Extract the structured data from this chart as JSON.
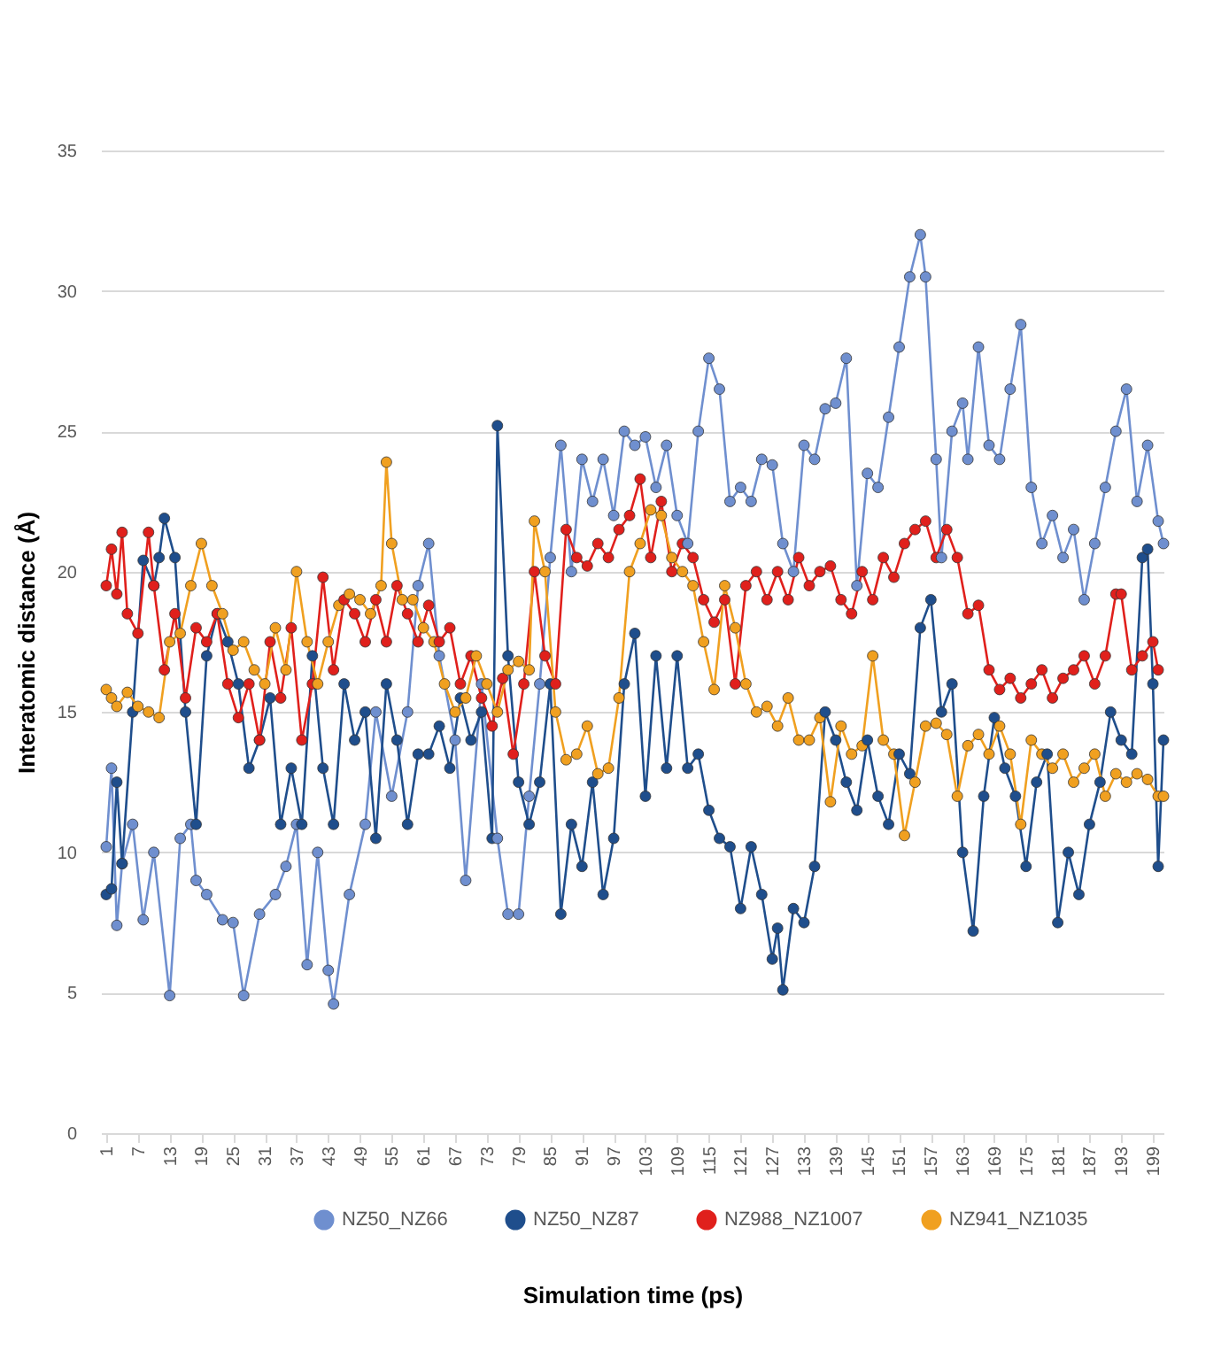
{
  "chart_data": {
    "type": "line",
    "xlabel": "Simulation time (ps)",
    "ylabel": "Interatomic distance (Å)",
    "xlim": [
      0,
      201
    ],
    "xticks": [
      1,
      7,
      13,
      19,
      25,
      31,
      37,
      43,
      49,
      55,
      61,
      67,
      73,
      79,
      85,
      91,
      97,
      103,
      109,
      115,
      121,
      127,
      133,
      139,
      145,
      151,
      157,
      163,
      169,
      175,
      181,
      187,
      193,
      199
    ],
    "ylim": [
      0,
      35
    ],
    "yticks": [
      0,
      5,
      10,
      15,
      20,
      25,
      30,
      35
    ],
    "grid": "y",
    "legend": "bottom",
    "marker": "circle",
    "line_style": "solid",
    "series": [
      {
        "name": "NZ50_NZ66",
        "color": "#6f8fcf",
        "x": [
          1,
          2,
          3,
          4,
          6,
          8,
          10,
          13,
          15,
          17,
          18,
          20,
          23,
          25,
          27,
          30,
          33,
          35,
          37,
          39,
          41,
          43,
          44,
          47,
          50,
          52,
          55,
          58,
          60,
          62,
          64,
          67,
          69,
          72,
          75,
          77,
          79,
          81,
          83,
          85,
          87,
          89,
          91,
          93,
          95,
          97,
          99,
          101,
          103,
          105,
          107,
          109,
          111,
          113,
          115,
          117,
          119,
          121,
          123,
          125,
          127,
          129,
          131,
          133,
          135,
          137,
          139,
          141,
          143,
          145,
          147,
          149,
          151,
          153,
          155,
          156,
          158,
          159,
          161,
          163,
          164,
          166,
          168,
          170,
          172,
          174,
          176,
          178,
          180,
          182,
          184,
          186,
          188,
          190,
          192,
          194,
          196,
          198,
          200,
          201
        ],
        "values": [
          10.2,
          13,
          7.4,
          9.6,
          11,
          7.6,
          10,
          4.9,
          10.5,
          11,
          9,
          8.5,
          7.6,
          7.5,
          4.9,
          7.8,
          8.5,
          9.5,
          11,
          6,
          10,
          5.8,
          4.6,
          8.5,
          11,
          15,
          12,
          15,
          19.5,
          21,
          17,
          14,
          9,
          16,
          10.5,
          7.8,
          7.8,
          12,
          16,
          20.5,
          24.5,
          20,
          24,
          22.5,
          24,
          22,
          25,
          24.5,
          24.8,
          23,
          24.5,
          22,
          21,
          25,
          27.6,
          26.5,
          22.5,
          23,
          22.5,
          24,
          23.8,
          21,
          20,
          24.5,
          24,
          25.8,
          26,
          27.6,
          19.5,
          23.5,
          23,
          25.5,
          28,
          30.5,
          32,
          30.5,
          24,
          20.5,
          25,
          26,
          24,
          28,
          24.5,
          24,
          26.5,
          28.8,
          23,
          21,
          22,
          20.5,
          21.5,
          19,
          21,
          23,
          25,
          26.5,
          22.5,
          24.5,
          21.8,
          21
        ]
      },
      {
        "name": "NZ50_NZ87",
        "color": "#1f4e8c",
        "x": [
          1,
          2,
          3,
          4,
          6,
          8,
          10,
          11,
          12,
          14,
          16,
          18,
          20,
          22,
          24,
          26,
          28,
          30,
          32,
          34,
          36,
          38,
          40,
          42,
          44,
          46,
          48,
          50,
          52,
          54,
          56,
          58,
          60,
          62,
          64,
          66,
          68,
          70,
          72,
          74,
          75,
          77,
          79,
          81,
          83,
          85,
          87,
          89,
          91,
          93,
          95,
          97,
          99,
          101,
          103,
          105,
          107,
          109,
          111,
          113,
          115,
          117,
          119,
          121,
          123,
          125,
          127,
          128,
          129,
          131,
          133,
          135,
          137,
          139,
          141,
          143,
          145,
          147,
          149,
          151,
          153,
          155,
          157,
          159,
          161,
          163,
          165,
          167,
          169,
          171,
          173,
          175,
          177,
          179,
          181,
          183,
          185,
          187,
          189,
          191,
          193,
          195,
          197,
          198,
          199,
          200,
          201
        ],
        "values": [
          8.5,
          8.7,
          12.5,
          9.6,
          15,
          20.4,
          19.5,
          20.5,
          21.9,
          20.5,
          15,
          11,
          17,
          18.5,
          17.5,
          16,
          13,
          14,
          15.5,
          11,
          13,
          11,
          17,
          13,
          11,
          16,
          14,
          15,
          10.5,
          16,
          14,
          11,
          13.5,
          13.5,
          14.5,
          13,
          15.5,
          14,
          15,
          10.5,
          25.2,
          17,
          12.5,
          11,
          12.5,
          16,
          7.8,
          11,
          9.5,
          12.5,
          8.5,
          10.5,
          16,
          17.8,
          12,
          17,
          13,
          17,
          13,
          13.5,
          11.5,
          10.5,
          10.2,
          8,
          10.2,
          8.5,
          6.2,
          7.3,
          5.1,
          8,
          7.5,
          9.5,
          15,
          14,
          12.5,
          11.5,
          14,
          12,
          11,
          13.5,
          12.8,
          18,
          19,
          15,
          16,
          10,
          7.2,
          12,
          14.8,
          13,
          12,
          9.5,
          12.5,
          13.5,
          7.5,
          10,
          8.5,
          11,
          12.5,
          15,
          14,
          13.5,
          20.5,
          20.8,
          16,
          9.5,
          14
        ]
      },
      {
        "name": "NZ988_NZ1007",
        "color": "#e0201c",
        "x": [
          1,
          2,
          3,
          4,
          5,
          7,
          9,
          10,
          12,
          14,
          16,
          18,
          20,
          22,
          24,
          26,
          28,
          30,
          32,
          34,
          36,
          38,
          40,
          42,
          44,
          46,
          48,
          50,
          52,
          54,
          56,
          58,
          60,
          62,
          64,
          66,
          68,
          70,
          72,
          74,
          76,
          78,
          80,
          82,
          84,
          86,
          88,
          90,
          92,
          94,
          96,
          98,
          100,
          102,
          104,
          106,
          108,
          110,
          112,
          114,
          116,
          118,
          120,
          122,
          124,
          126,
          128,
          130,
          132,
          134,
          136,
          138,
          140,
          142,
          144,
          146,
          148,
          150,
          152,
          154,
          156,
          158,
          160,
          162,
          164,
          166,
          168,
          170,
          172,
          174,
          176,
          178,
          180,
          182,
          184,
          186,
          188,
          190,
          192,
          193,
          195,
          197,
          199,
          200
        ],
        "values": [
          19.5,
          20.8,
          19.2,
          21.4,
          18.5,
          17.8,
          21.4,
          19.5,
          16.5,
          18.5,
          15.5,
          18,
          17.5,
          18.5,
          16,
          14.8,
          16,
          14,
          17.5,
          15.5,
          18,
          14,
          16,
          19.8,
          16.5,
          19,
          18.5,
          17.5,
          19,
          17.5,
          19.5,
          18.5,
          17.5,
          18.8,
          17.5,
          18,
          16,
          17,
          15.5,
          14.5,
          16.2,
          13.5,
          16,
          20,
          17,
          16,
          21.5,
          20.5,
          20.2,
          21,
          20.5,
          21.5,
          22,
          23.3,
          20.5,
          22.5,
          20,
          21,
          20.5,
          19,
          18.2,
          19,
          16,
          19.5,
          20,
          19,
          20,
          19,
          20.5,
          19.5,
          20,
          20.2,
          19,
          18.5,
          20,
          19,
          20.5,
          19.8,
          21,
          21.5,
          21.8,
          20.5,
          21.5,
          20.5,
          18.5,
          18.8,
          16.5,
          15.8,
          16.2,
          15.5,
          16,
          16.5,
          15.5,
          16.2,
          16.5,
          17,
          16,
          17,
          19.2,
          19.2,
          16.5,
          17,
          17.5,
          16.5
        ]
      },
      {
        "name": "NZ941_NZ1035",
        "color": "#f0a020",
        "x": [
          1,
          2,
          3,
          5,
          7,
          9,
          11,
          13,
          15,
          17,
          19,
          21,
          23,
          25,
          27,
          29,
          31,
          33,
          35,
          37,
          39,
          41,
          43,
          45,
          47,
          49,
          51,
          53,
          54,
          55,
          57,
          59,
          61,
          63,
          65,
          67,
          69,
          71,
          73,
          75,
          77,
          79,
          81,
          82,
          84,
          86,
          88,
          90,
          92,
          94,
          96,
          98,
          100,
          102,
          104,
          106,
          108,
          110,
          112,
          114,
          116,
          118,
          120,
          122,
          124,
          126,
          128,
          130,
          132,
          134,
          136,
          138,
          140,
          142,
          144,
          146,
          148,
          150,
          152,
          154,
          156,
          158,
          160,
          162,
          164,
          166,
          168,
          170,
          172,
          174,
          176,
          178,
          180,
          182,
          184,
          186,
          188,
          190,
          192,
          194,
          196,
          198,
          200,
          201
        ],
        "values": [
          15.8,
          15.5,
          15.2,
          15.7,
          15.2,
          15,
          14.8,
          17.5,
          17.8,
          19.5,
          21,
          19.5,
          18.5,
          17.2,
          17.5,
          16.5,
          16,
          18,
          16.5,
          20,
          17.5,
          16,
          17.5,
          18.8,
          19.2,
          19,
          18.5,
          19.5,
          23.9,
          21,
          19,
          19,
          18,
          17.5,
          16,
          15,
          15.5,
          17,
          16,
          15,
          16.5,
          16.8,
          16.5,
          21.8,
          20,
          15,
          13.3,
          13.5,
          14.5,
          12.8,
          13,
          15.5,
          20,
          21,
          22.2,
          22,
          20.5,
          20,
          19.5,
          17.5,
          15.8,
          19.5,
          18,
          16,
          15,
          15.2,
          14.5,
          15.5,
          14,
          14,
          14.8,
          11.8,
          14.5,
          13.5,
          13.8,
          17,
          14,
          13.5,
          10.6,
          12.5,
          14.5,
          14.6,
          14.2,
          12,
          13.8,
          14.2,
          13.5,
          14.5,
          13.5,
          11,
          14,
          13.5,
          13,
          13.5,
          12.5,
          13,
          13.5,
          12,
          12.8,
          12.5,
          12.8,
          12.6,
          12,
          12
        ]
      }
    ]
  }
}
